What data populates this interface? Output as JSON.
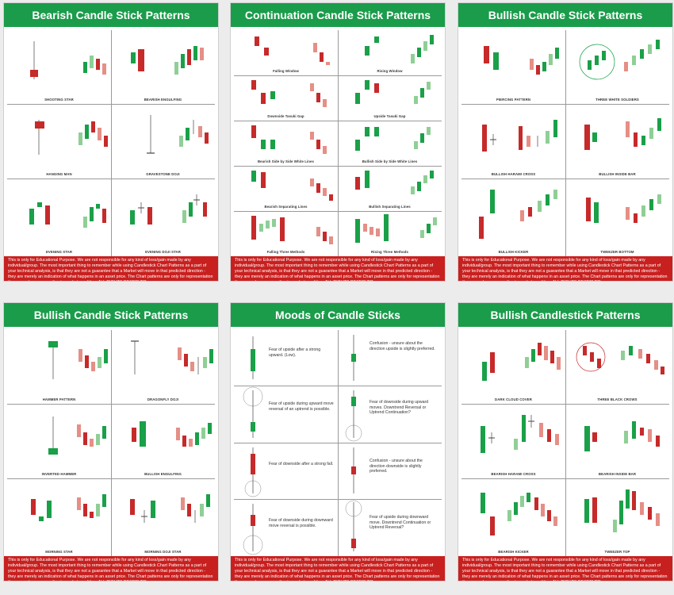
{
  "disclaimer": "This is only for Educational Purpose. We are not responsible for any kind of loss/gain made by any individual/group. The most important thing to remember while using Candlestick Chart Patterns as a part of your technical analysis, is that they are not a guarantee that a Market will move in that predicted direction - they are merely an indication of what happens in an asset price. The Chart patterns are only for representation they may change according to market condition. ALL RIGHTS RESERVED.",
  "colors": {
    "green": "#1a9c4a",
    "red": "#c8201f",
    "candle_green": "#1aa048",
    "candle_red": "#c62a2a",
    "light_green": "#8fcf96",
    "light_red": "#e58f86"
  },
  "panels": [
    {
      "title": "Bearish Candle Stick Patterns",
      "cells": [
        "SHOOTING STAR",
        "BEARISH ENGULFING",
        "HANGING MAN",
        "GRAVESTONE DOJI",
        "EVENING STAR",
        "EVENING DOJI STAR"
      ]
    },
    {
      "title": "Continuation Candle Stick Patterns",
      "cells": [
        "Falling Window",
        "Rising Window",
        "Downside Tasuki Gap",
        "Upside Tasuki Gap",
        "Bearish Side by Side White Lines",
        "Bullish Side by Side White Lines",
        "Bearish Separating Lines",
        "Bullish Separating Lines",
        "Falling Three Methods",
        "Rising Three Methods"
      ]
    },
    {
      "title": "Bullish Candle Stick Patterns",
      "cells": [
        "PIERCING PATTERN",
        "THREE WHITE SOLDIERS",
        "BULLISH HARAMI CROSS",
        "BULLISH INSIDE BAR",
        "BULLISH KICKER",
        "TWEEZER BOTTOM"
      ]
    },
    {
      "title": "Bullish Candle Stick Patterns",
      "cells": [
        "HAMMER PATTERN",
        "DRAGONFLY DOJI",
        "INVERTED HAMMER",
        "BULLISH ENGULFING",
        "MORNING STAR",
        "MORNING DOJI STAR"
      ]
    },
    {
      "title": "Moods of Candle Sticks",
      "moods": [
        "Fear of upside after a strong upward. (Low).",
        "Confusion - unsure about the direction upside is slightly preferred.",
        "Fear of upside during upward move reversal of an uptrend is possible.",
        "Fear of downside during upward moves. Downtrend Reversal or Uptrend Continuation?",
        "Fear of downside after a strong fall.",
        "Confusion - unsure about the direction downside is slightly preferred.",
        "Fear of downside during downward move reversal is possible.",
        "Fear of upside during downward move. Downtrend Continuation or Uptrend Reversal?"
      ]
    },
    {
      "title": "Bullish Candlestick Patterns",
      "cells": [
        "DARK CLOUD COVER",
        "THREE BLACK CROWS",
        "BEARISH HARAMI CROSS",
        "BEARISH INSIDE BAR",
        "BEARISH KICKER",
        "TWEEZER TOP"
      ]
    }
  ]
}
